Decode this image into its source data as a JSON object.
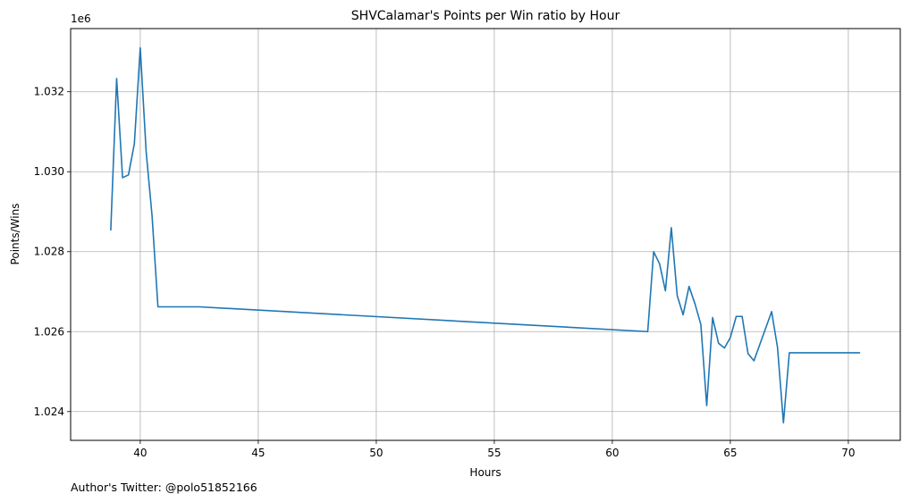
{
  "chart_data": {
    "type": "line",
    "title": "SHVCalamar's Points per Win ratio by Hour",
    "xlabel": "Hours",
    "ylabel": "Points/Wins",
    "y_offset_label": "1e6",
    "xlim": [
      37.05,
      72.2
    ],
    "ylim": [
      1.02328,
      1.03358
    ],
    "x_ticks": [
      40,
      45,
      50,
      55,
      60,
      65,
      70
    ],
    "y_ticks": [
      1.024,
      1.026,
      1.028,
      1.03,
      1.032
    ],
    "x_tick_labels": [
      "40",
      "45",
      "50",
      "55",
      "60",
      "65",
      "70"
    ],
    "y_tick_labels": [
      "1.024",
      "1.026",
      "1.028",
      "1.030",
      "1.032"
    ],
    "grid": true,
    "line_color": "#1f77b4",
    "series": [
      {
        "x": [
          38.75,
          39.0,
          39.25,
          39.5,
          39.75,
          40.0,
          40.25,
          40.5,
          40.75,
          42.5,
          61.5,
          61.75,
          62.0,
          62.25,
          62.5,
          62.75,
          63.0,
          63.25,
          63.5,
          63.75,
          64.0,
          64.25,
          64.5,
          64.75,
          65.0,
          65.25,
          65.5,
          65.75,
          66.0,
          66.75,
          67.0,
          67.25,
          67.5,
          70.5
        ],
        "y": [
          1.02853,
          1.03233,
          1.02985,
          1.02992,
          1.0307,
          1.0331,
          1.0305,
          1.0289,
          1.02662,
          1.02662,
          1.026,
          1.028,
          1.0277,
          1.02702,
          1.0286,
          1.0269,
          1.02642,
          1.02713,
          1.0267,
          1.02618,
          1.02415,
          1.02635,
          1.02571,
          1.02559,
          1.02585,
          1.02638,
          1.02638,
          1.02545,
          1.02527,
          1.0265,
          1.0256,
          1.02372,
          1.02547,
          1.02547
        ]
      }
    ]
  },
  "footer": {
    "author_text": "Author's Twitter: @polo51852166"
  }
}
